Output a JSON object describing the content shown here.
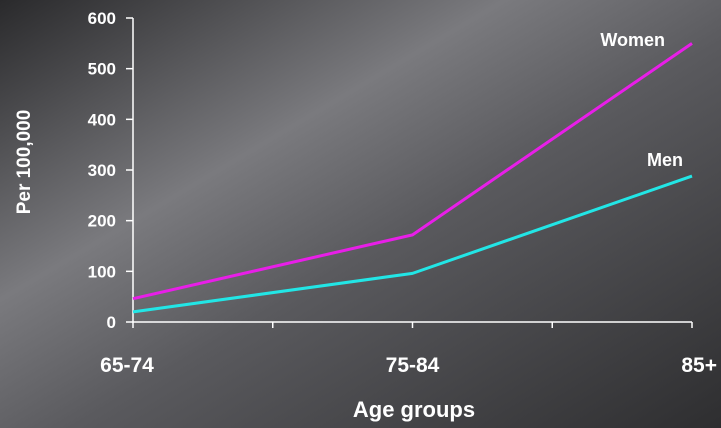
{
  "chart_data": {
    "type": "line",
    "categories": [
      "65-74",
      "75-84",
      "85+"
    ],
    "series": [
      {
        "name": "Women",
        "values": [
          46,
          172,
          550
        ],
        "color": "#e81ee8"
      },
      {
        "name": "Men",
        "values": [
          20,
          96,
          288
        ],
        "color": "#22e6e6"
      }
    ],
    "xlabel": "Age groups",
    "ylabel": "Per 100,000",
    "ylim": [
      0,
      600
    ],
    "yticks": [
      0,
      100,
      200,
      300,
      400,
      500,
      600
    ],
    "grid": false,
    "legend": "inline labels at line ends",
    "axis_color": "#ffffff"
  }
}
